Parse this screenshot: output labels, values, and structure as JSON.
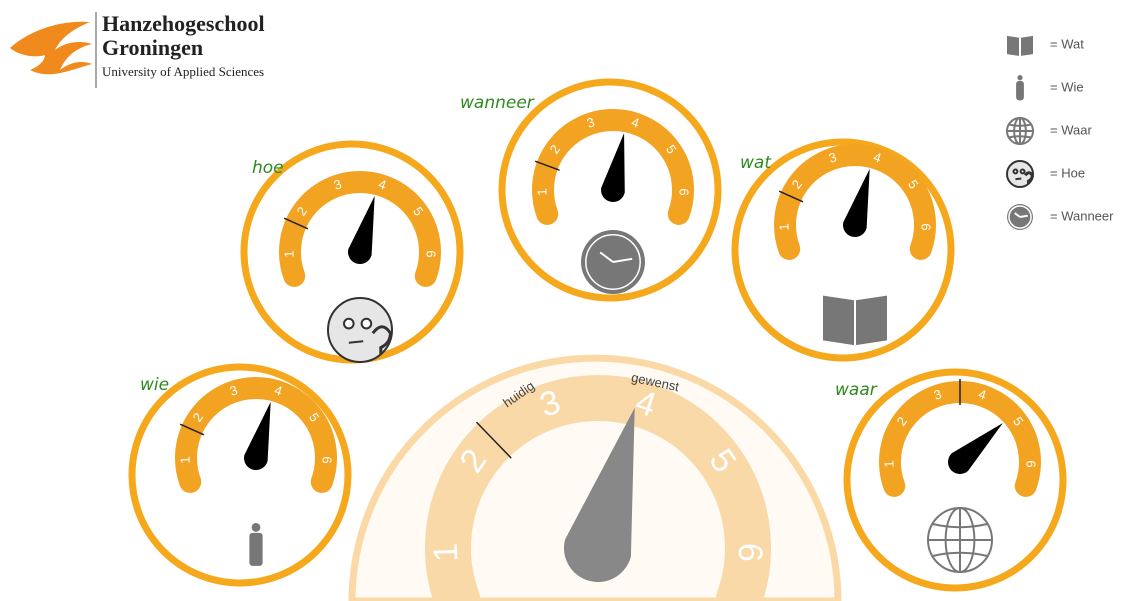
{
  "header": {
    "title_line1": "Hanzehogeschool",
    "title_line2": "Groningen",
    "subtitle": "University of Applied Sciences"
  },
  "legend": [
    {
      "label": "= Wat"
    },
    {
      "label": "= Wie"
    },
    {
      "label": "= Waar"
    },
    {
      "label": "= Hoe"
    },
    {
      "label": "= Wanneer"
    }
  ],
  "scale": [
    "1",
    "2",
    "3",
    "4",
    "5",
    "6"
  ],
  "gauges": [
    {
      "label": "hoe",
      "current": 1.7,
      "desired": 3.9
    },
    {
      "label": "wanneer",
      "current": 1.6,
      "desired": 3.8
    },
    {
      "label": "wat",
      "current": 1.7,
      "desired": 3.9
    },
    {
      "label": "wie",
      "current": 1.7,
      "desired": 3.9
    },
    {
      "label": "waar",
      "current": 3.5,
      "desired": 4.8
    }
  ],
  "main_gauge": {
    "current_label": "huidig",
    "desired_label": "gewenst",
    "current": 2.3,
    "desired": 3.9
  }
}
